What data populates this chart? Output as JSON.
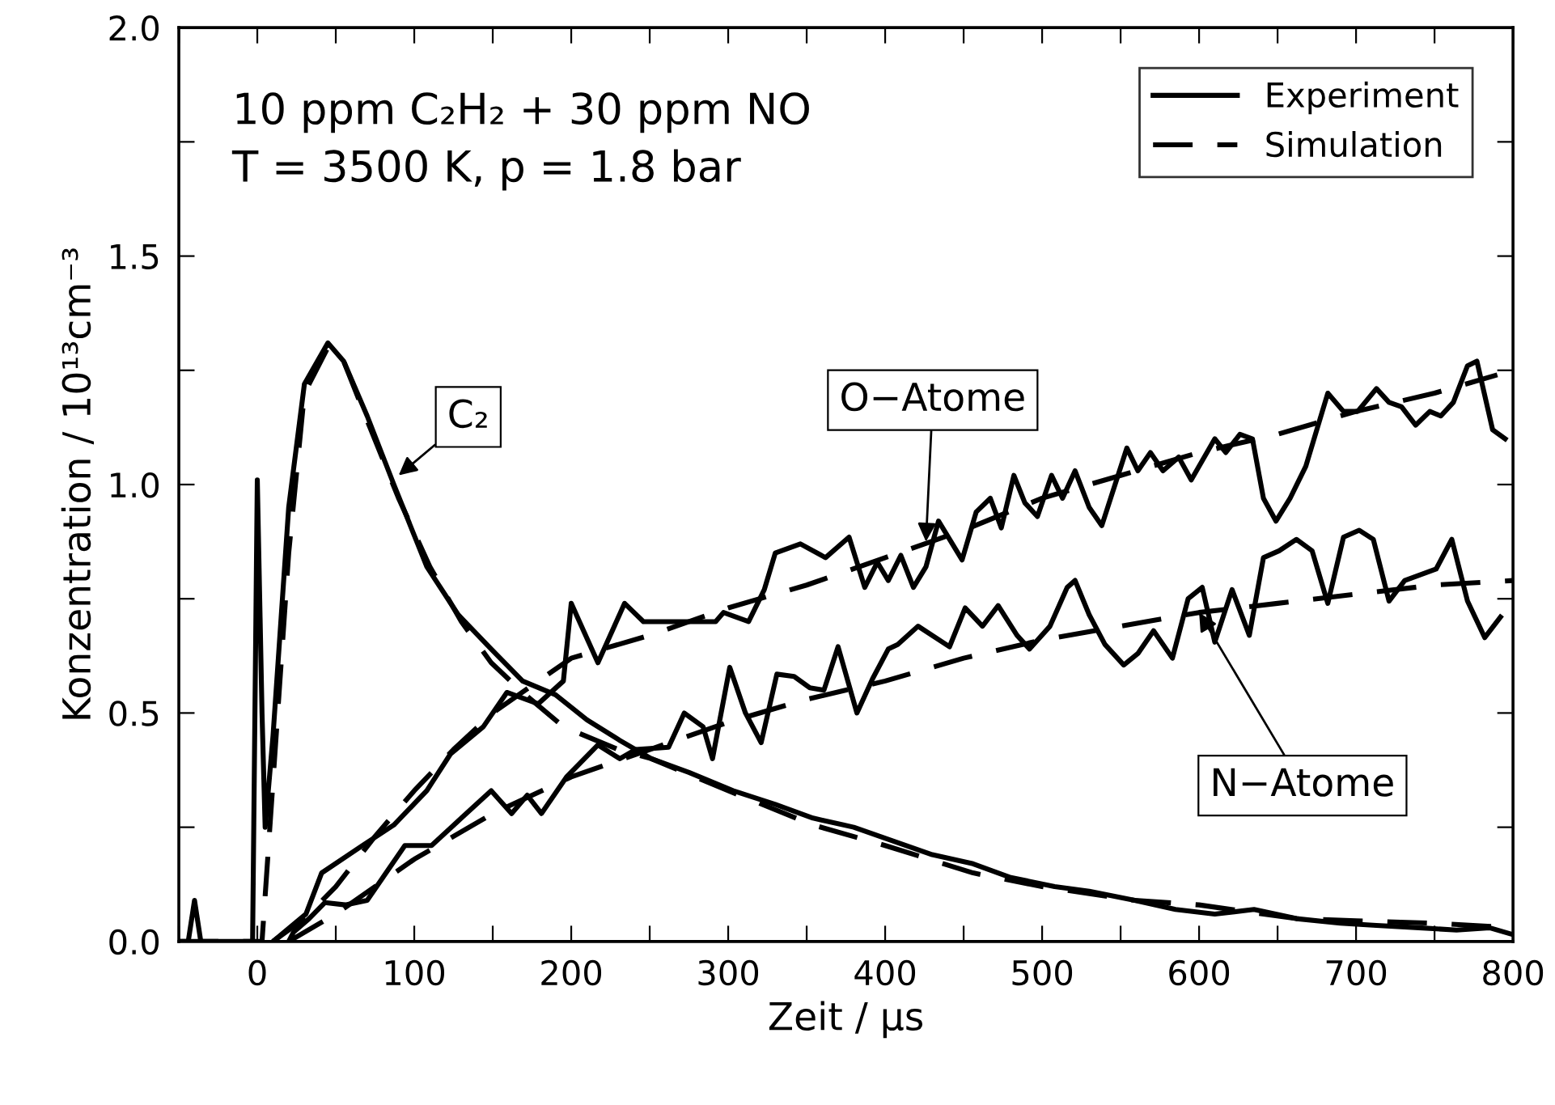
{
  "chart_data": {
    "type": "line",
    "xlabel": "Zeit / µs",
    "ylabel": "Konzentration / 10¹³cm⁻³",
    "xlim": [
      -50,
      800
    ],
    "ylim": [
      0,
      2.0
    ],
    "xticks": [
      {
        "value": -50,
        "label": null
      },
      0,
      {
        "value": 50,
        "label": null
      },
      100,
      {
        "value": 150,
        "label": null
      },
      200,
      {
        "value": 250,
        "label": null
      },
      300,
      {
        "value": 350,
        "label": null
      },
      400,
      {
        "value": 450,
        "label": null
      },
      500,
      {
        "value": 550,
        "label": null
      },
      600,
      {
        "value": 650,
        "label": null
      },
      700,
      {
        "value": 750,
        "label": null
      },
      800
    ],
    "yticks": [
      {
        "value": 0,
        "label": "0.0"
      },
      {
        "value": 0.25,
        "label": null
      },
      {
        "value": 0.5,
        "label": "0.5"
      },
      {
        "value": 0.75,
        "label": null
      },
      {
        "value": 1.0,
        "label": "1.0"
      },
      {
        "value": 1.25,
        "label": null
      },
      {
        "value": 1.5,
        "label": "1.5"
      },
      {
        "value": 1.75,
        "label": null
      },
      {
        "value": 2.0,
        "label": "2.0"
      }
    ],
    "grid": false,
    "legend": "top right",
    "marker": "none",
    "annotations": [
      "10 ppm C₂H₂ + 30 ppm NO",
      "T = 3500 K, p = 1.8 bar",
      {
        "text": "C₂",
        "x": 90,
        "y": 1.02
      },
      {
        "text": "O−Atome",
        "x": 426,
        "y": 0.875
      },
      {
        "text": "N−Atome",
        "x": 600,
        "y": 0.72
      }
    ],
    "series": [
      {
        "name": "Experiment",
        "color": "#000000",
        "line_style": "solid",
        "x": [
          -50,
          -44,
          -40,
          -36,
          -30,
          -3,
          0,
          3,
          5,
          10,
          20,
          30,
          45,
          55,
          70,
          87,
          108,
          128,
          149,
          169,
          190,
          210,
          231,
          251,
          275,
          303,
          330,
          354,
          380,
          405,
          430,
          456,
          480,
          508,
          530,
          559,
          585,
          610,
          635,
          662,
          690,
          713,
          740,
          764,
          785,
          800
        ],
        "values": [
          0,
          0,
          0.09,
          0,
          0,
          0,
          1.01,
          0.5,
          0.25,
          0.45,
          0.95,
          1.22,
          1.31,
          1.27,
          1.15,
          1.0,
          0.82,
          0.715,
          0.64,
          0.57,
          0.54,
          0.485,
          0.44,
          0.4,
          0.37,
          0.33,
          0.3,
          0.27,
          0.25,
          0.22,
          0.19,
          0.17,
          0.14,
          0.12,
          0.11,
          0.09,
          0.07,
          0.06,
          0.07,
          0.05,
          0.04,
          0.035,
          0.03,
          0.025,
          0.03,
          0.015
        ]
      },
      {
        "name": "Simulation",
        "color": "#000000",
        "line_style": "dashed",
        "x": [
          -50,
          3,
          5,
          10,
          20,
          30,
          45,
          55,
          70,
          90,
          110,
          130,
          149,
          169,
          195,
          230,
          251,
          300,
          354,
          400,
          456,
          500,
          559,
          600,
          662,
          700,
          750,
          800
        ],
        "values": [
          0,
          0,
          0.1,
          0.35,
          0.85,
          1.2,
          1.3,
          1.27,
          1.14,
          0.97,
          0.82,
          0.7,
          0.61,
          0.545,
          0.47,
          0.42,
          0.4,
          0.33,
          0.255,
          0.21,
          0.15,
          0.12,
          0.09,
          0.08,
          0.05,
          0.045,
          0.04,
          0.03
        ]
      },
      {
        "color": "#000000",
        "line_style": "solid",
        "x": [
          10,
          31,
          41,
          67,
          87,
          108,
          123,
          144,
          159,
          179,
          195,
          200,
          217,
          234,
          246,
          292,
          297,
          313,
          323,
          330,
          346,
          362,
          377,
          387,
          395,
          402,
          410,
          418,
          426,
          434,
          449,
          458,
          467,
          474,
          482,
          489,
          497,
          506,
          513,
          521,
          530,
          538,
          554,
          561,
          569,
          577,
          587,
          595,
          610,
          617,
          626,
          634,
          641,
          649,
          658,
          668,
          682,
          692,
          701,
          713,
          721,
          729,
          738,
          747,
          754,
          762,
          771,
          777,
          787,
          795
        ],
        "values": [
          0,
          0.06,
          0.15,
          0.21,
          0.255,
          0.33,
          0.41,
          0.47,
          0.545,
          0.52,
          0.57,
          0.74,
          0.61,
          0.74,
          0.7,
          0.7,
          0.72,
          0.7,
          0.77,
          0.85,
          0.87,
          0.84,
          0.885,
          0.775,
          0.83,
          0.79,
          0.845,
          0.775,
          0.82,
          0.92,
          0.835,
          0.94,
          0.97,
          0.905,
          1.02,
          0.96,
          0.93,
          1.02,
          0.97,
          1.03,
          0.95,
          0.91,
          1.08,
          1.03,
          1.07,
          1.03,
          1.06,
          1.01,
          1.1,
          1.07,
          1.11,
          1.1,
          0.97,
          0.92,
          0.97,
          1.04,
          1.2,
          1.16,
          1.16,
          1.21,
          1.18,
          1.17,
          1.13,
          1.16,
          1.15,
          1.18,
          1.26,
          1.27,
          1.12,
          1.1
        ]
      },
      {
        "color": "#000000",
        "line_style": "dashed",
        "x": [
          10,
          30,
          50,
          75,
          100,
          125,
          150,
          175,
          200,
          250,
          300,
          350,
          400,
          450,
          500,
          550,
          600,
          650,
          700,
          750,
          790
        ],
        "values": [
          0,
          0.05,
          0.12,
          0.23,
          0.33,
          0.42,
          0.5,
          0.56,
          0.62,
          0.67,
          0.73,
          0.78,
          0.84,
          0.9,
          0.97,
          1.02,
          1.07,
          1.11,
          1.16,
          1.2,
          1.24
        ]
      },
      {
        "color": "#000000",
        "line_style": "solid",
        "x": [
          20,
          23,
          33,
          43,
          56,
          70,
          80,
          94,
          111,
          130,
          149,
          162,
          172,
          181,
          197,
          217,
          231,
          241,
          262,
          272,
          284,
          290,
          301,
          311,
          321,
          331,
          342,
          352,
          361,
          370,
          382,
          392,
          402,
          408,
          421,
          441,
          451,
          462,
          472,
          484,
          492,
          505,
          516,
          521,
          530,
          540,
          552,
          561,
          571,
          583,
          593,
          602,
          610,
          621,
          632,
          641,
          651,
          662,
          672,
          682,
          692,
          702,
          711,
          721,
          731,
          751,
          761,
          771,
          782,
          792
        ],
        "values": [
          0,
          0.02,
          0.05,
          0.085,
          0.08,
          0.09,
          0.14,
          0.21,
          0.21,
          0.27,
          0.33,
          0.28,
          0.32,
          0.28,
          0.36,
          0.43,
          0.4,
          0.42,
          0.425,
          0.5,
          0.47,
          0.4,
          0.6,
          0.5,
          0.435,
          0.585,
          0.58,
          0.555,
          0.55,
          0.645,
          0.5,
          0.575,
          0.64,
          0.65,
          0.69,
          0.645,
          0.73,
          0.69,
          0.735,
          0.67,
          0.64,
          0.69,
          0.775,
          0.79,
          0.715,
          0.65,
          0.605,
          0.63,
          0.68,
          0.62,
          0.75,
          0.775,
          0.655,
          0.77,
          0.67,
          0.84,
          0.855,
          0.88,
          0.855,
          0.74,
          0.885,
          0.9,
          0.88,
          0.745,
          0.79,
          0.815,
          0.88,
          0.745,
          0.665,
          0.71
        ]
      },
      {
        "color": "#000000",
        "line_style": "dashed",
        "x": [
          20,
          50,
          100,
          150,
          200,
          250,
          300,
          350,
          400,
          450,
          500,
          550,
          600,
          650,
          700,
          750,
          800
        ],
        "values": [
          0,
          0.06,
          0.18,
          0.28,
          0.36,
          0.42,
          0.48,
          0.53,
          0.57,
          0.62,
          0.66,
          0.69,
          0.72,
          0.74,
          0.76,
          0.78,
          0.79
        ]
      }
    ]
  }
}
